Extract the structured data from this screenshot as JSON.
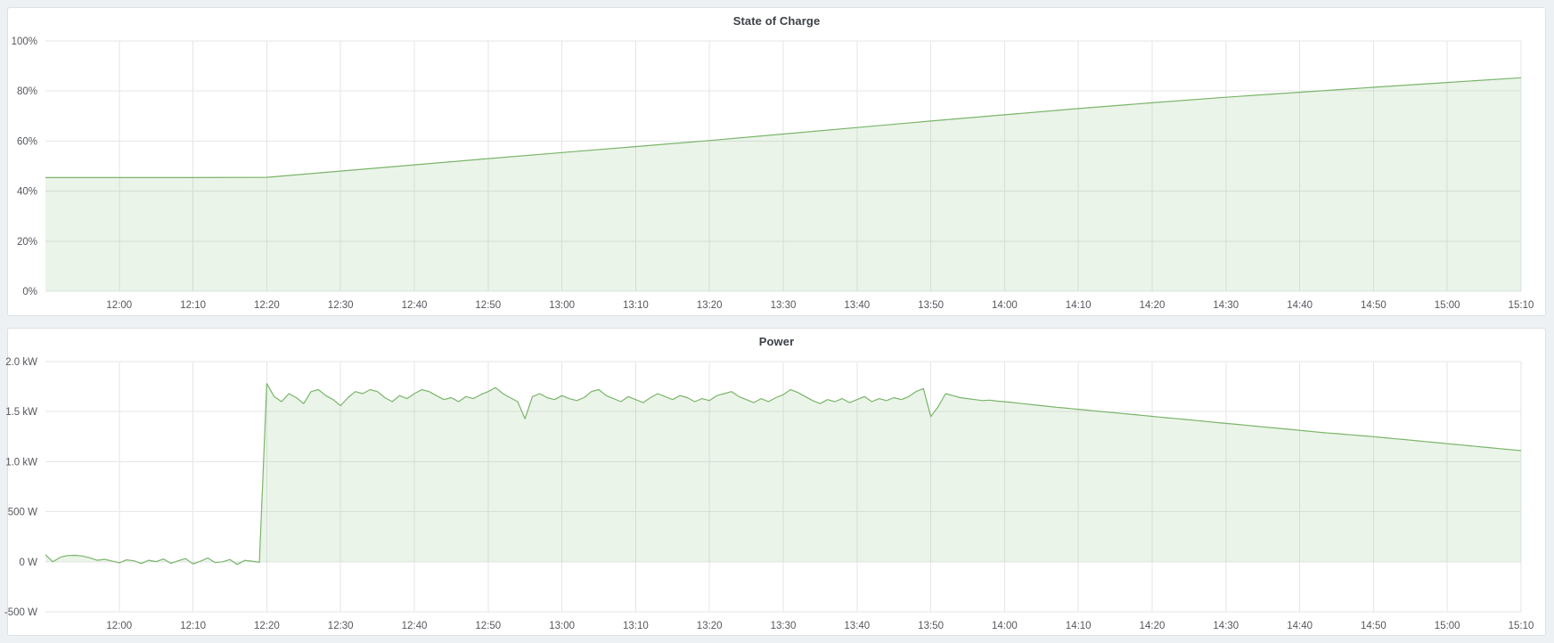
{
  "theme": {
    "page_background": "#eef1f4",
    "panel_background": "#ffffff",
    "panel_border": "#dde0e4",
    "grid_color": "#e4e6e9",
    "axis_text_color": "#54575e",
    "title_color": "#3c4148",
    "series_line_color": "#7ab56a",
    "series_fill_color": "rgba(122,181,106,0.15)"
  },
  "chart_data": [
    {
      "type": "area",
      "title": "State of Charge",
      "xlabel": "",
      "ylabel": "",
      "x_start": "11:50",
      "x_end": "15:10",
      "x_step_minutes": 10,
      "x_tick_labels": [
        "12:00",
        "12:10",
        "12:20",
        "12:30",
        "12:40",
        "12:50",
        "13:00",
        "13:10",
        "13:20",
        "13:30",
        "13:40",
        "13:50",
        "14:00",
        "14:10",
        "14:20",
        "14:30",
        "14:40",
        "14:50",
        "15:00",
        "15:10"
      ],
      "ylim": [
        0,
        100
      ],
      "y_ticks": [
        {
          "value": 100,
          "label": "100%"
        },
        {
          "value": 80,
          "label": "80%"
        },
        {
          "value": 60,
          "label": "60%"
        },
        {
          "value": 40,
          "label": "40%"
        },
        {
          "value": 20,
          "label": "20%"
        },
        {
          "value": 0,
          "label": "0%"
        }
      ],
      "grid": true,
      "legend": "none",
      "fill_baseline": 0,
      "values": [
        45.4,
        45.4,
        45.4,
        45.5,
        48.0,
        50.5,
        53.0,
        55.4,
        57.8,
        60.2,
        62.8,
        65.4,
        68.0,
        70.5,
        73.0,
        75.3,
        77.5,
        79.5,
        81.5,
        83.4,
        85.3
      ]
    },
    {
      "type": "area",
      "title": "Power",
      "xlabel": "",
      "ylabel": "",
      "x_start": "11:50",
      "x_end": "15:10",
      "x_step_minutes": 1,
      "x_tick_labels": [
        "12:00",
        "12:10",
        "12:20",
        "12:30",
        "12:40",
        "12:50",
        "13:00",
        "13:10",
        "13:20",
        "13:30",
        "13:40",
        "13:50",
        "14:00",
        "14:10",
        "14:20",
        "14:30",
        "14:40",
        "14:50",
        "15:00",
        "15:10"
      ],
      "ylim": [
        -500,
        2000
      ],
      "y_ticks": [
        {
          "value": 2000,
          "label": "2.0 kW"
        },
        {
          "value": 1500,
          "label": "1.5 kW"
        },
        {
          "value": 1000,
          "label": "1.0 kW"
        },
        {
          "value": 500,
          "label": "500 W"
        },
        {
          "value": 0,
          "label": "0 W"
        },
        {
          "value": -500,
          "label": "-500 W"
        }
      ],
      "grid": true,
      "legend": "none",
      "fill_baseline": 0,
      "values": [
        70,
        0,
        45,
        62,
        65,
        58,
        40,
        15,
        25,
        8,
        -12,
        20,
        10,
        -18,
        15,
        2,
        28,
        -15,
        10,
        32,
        -22,
        5,
        38,
        -8,
        0,
        22,
        -28,
        14,
        6,
        -5,
        1780,
        1650,
        1600,
        1680,
        1640,
        1580,
        1700,
        1720,
        1660,
        1620,
        1560,
        1640,
        1700,
        1680,
        1720,
        1700,
        1640,
        1600,
        1660,
        1630,
        1680,
        1720,
        1700,
        1660,
        1620,
        1640,
        1600,
        1650,
        1630,
        1670,
        1700,
        1740,
        1680,
        1640,
        1600,
        1430,
        1650,
        1680,
        1640,
        1620,
        1660,
        1630,
        1610,
        1640,
        1700,
        1720,
        1660,
        1630,
        1600,
        1650,
        1620,
        1590,
        1640,
        1680,
        1650,
        1620,
        1660,
        1640,
        1600,
        1630,
        1610,
        1660,
        1680,
        1700,
        1650,
        1620,
        1590,
        1630,
        1600,
        1640,
        1670,
        1720,
        1690,
        1650,
        1610,
        1580,
        1620,
        1600,
        1630,
        1590,
        1620,
        1650,
        1600,
        1630,
        1610,
        1640,
        1620,
        1650,
        1700,
        1730,
        1450,
        1550,
        1680,
        1660,
        1640,
        1630,
        1620,
        1610,
        1615,
        1605,
        1600,
        1592,
        1584,
        1576,
        1568,
        1560,
        1552,
        1544,
        1537,
        1530,
        1523,
        1516,
        1509,
        1502,
        1495,
        1488,
        1481,
        1474,
        1467,
        1460,
        1453,
        1446,
        1439,
        1432,
        1425,
        1418,
        1411,
        1404,
        1397,
        1390,
        1383,
        1376,
        1369,
        1362,
        1355,
        1348,
        1341,
        1334,
        1327,
        1320,
        1313,
        1306,
        1299,
        1292,
        1286,
        1280,
        1274,
        1268,
        1262,
        1256,
        1250,
        1243,
        1236,
        1229,
        1222,
        1215,
        1208,
        1201,
        1194,
        1187,
        1180,
        1173,
        1166,
        1159,
        1152,
        1145,
        1138,
        1131,
        1124,
        1117,
        1110
      ]
    }
  ]
}
